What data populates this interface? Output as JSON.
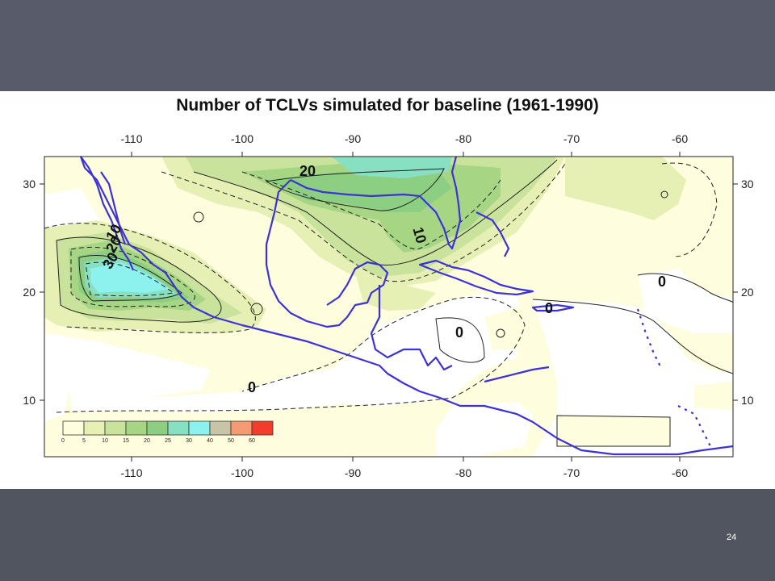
{
  "title": "Number of TCLVs simulated for baseline (1961-1990)",
  "page_number": "24",
  "axes": {
    "lon_ticks": [
      "-110",
      "-100",
      "-90",
      "-80",
      "-70",
      "-60"
    ],
    "lat_ticks": [
      "30",
      "20",
      "10"
    ]
  },
  "contour_labels": [
    "20",
    "10",
    "10",
    "20",
    "30",
    "0",
    "0",
    "0",
    "0"
  ],
  "legend": {
    "values": [
      "0",
      "5",
      "10",
      "15",
      "20",
      "25",
      "30",
      "40",
      "50",
      "60"
    ],
    "colors": [
      "#fefddd",
      "#e6efb4",
      "#c9e39c",
      "#a6d684",
      "#8ccf82",
      "#88e0c2",
      "#8df2ee",
      "#c8c4a8",
      "#f59a72",
      "#f43c2c"
    ]
  },
  "colors": {
    "coastline": "#3c32d6",
    "slide_background": "#585c6a"
  }
}
